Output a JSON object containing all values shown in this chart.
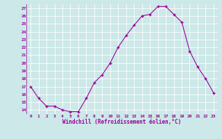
{
  "x": [
    0,
    1,
    2,
    3,
    4,
    5,
    6,
    7,
    8,
    9,
    10,
    11,
    12,
    13,
    14,
    15,
    16,
    17,
    18,
    19,
    20,
    21,
    22,
    23
  ],
  "y": [
    17,
    15.5,
    14.5,
    14.5,
    14,
    13.8,
    13.8,
    15.5,
    17.5,
    18.5,
    20,
    22,
    23.5,
    24.8,
    26,
    26.2,
    27.2,
    27.2,
    26.2,
    25.2,
    21.5,
    19.5,
    18,
    16.2
  ],
  "line_color": "#990099",
  "marker": "+",
  "marker_color": "#990099",
  "bg_color": "#cce8e8",
  "grid_color": "#ffffff",
  "xlabel": "Windchill (Refroidissement éolien,°C)",
  "xlabel_color": "#990099",
  "tick_color": "#990099",
  "xlim": [
    -0.5,
    23.5
  ],
  "ylim": [
    13.5,
    27.5
  ],
  "yticks": [
    14,
    15,
    16,
    17,
    18,
    19,
    20,
    21,
    22,
    23,
    24,
    25,
    26,
    27
  ],
  "xticks": [
    0,
    1,
    2,
    3,
    4,
    5,
    6,
    7,
    8,
    9,
    10,
    11,
    12,
    13,
    14,
    15,
    16,
    17,
    18,
    19,
    20,
    21,
    22,
    23
  ]
}
